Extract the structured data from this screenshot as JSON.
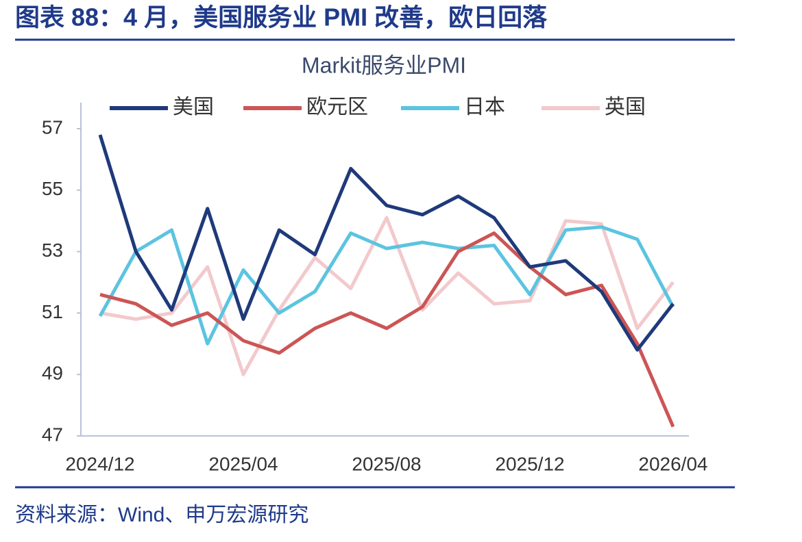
{
  "header": {
    "title": "图表 88：4 月，美国服务业 PMI 改善，欧日回落"
  },
  "chart_data": {
    "type": "line",
    "title": "Markit服务业PMI",
    "categories": [
      "2024/12",
      null,
      null,
      null,
      "2025/04",
      null,
      null,
      null,
      "2025/08",
      null,
      null,
      null,
      "2025/12",
      null,
      null,
      null,
      "2026/04"
    ],
    "series": [
      {
        "name": "美国",
        "color": "#1f3a7a",
        "values": [
          56.8,
          53.0,
          51.1,
          54.4,
          50.8,
          53.7,
          52.9,
          55.7,
          54.5,
          54.2,
          54.8,
          54.1,
          52.5,
          52.7,
          51.7,
          49.8,
          51.3
        ]
      },
      {
        "name": "欧元区",
        "color": "#cc5555",
        "values": [
          51.6,
          51.3,
          50.6,
          51.0,
          50.1,
          49.7,
          50.5,
          51.0,
          50.5,
          51.2,
          53.0,
          53.6,
          52.5,
          51.6,
          51.9,
          50.0,
          47.3
        ]
      },
      {
        "name": "日本",
        "color": "#5bc4e0",
        "values": [
          50.9,
          53.0,
          53.7,
          50.0,
          52.4,
          51.0,
          51.7,
          53.6,
          53.1,
          53.3,
          53.1,
          53.2,
          51.6,
          53.7,
          53.8,
          53.4,
          51.2
        ]
      },
      {
        "name": "英国",
        "color": "#f2c9cc",
        "values": [
          51.0,
          50.8,
          51.0,
          52.5,
          49.0,
          51.1,
          52.8,
          51.8,
          54.1,
          51.1,
          52.3,
          51.3,
          51.4,
          54.0,
          53.9,
          50.5,
          52.0
        ]
      }
    ],
    "ylim": [
      47,
      57
    ],
    "yticks": [
      47,
      49,
      51,
      53,
      55,
      57
    ],
    "legend": "top"
  },
  "footer": {
    "source": "资料来源：Wind、申万宏源研究"
  }
}
